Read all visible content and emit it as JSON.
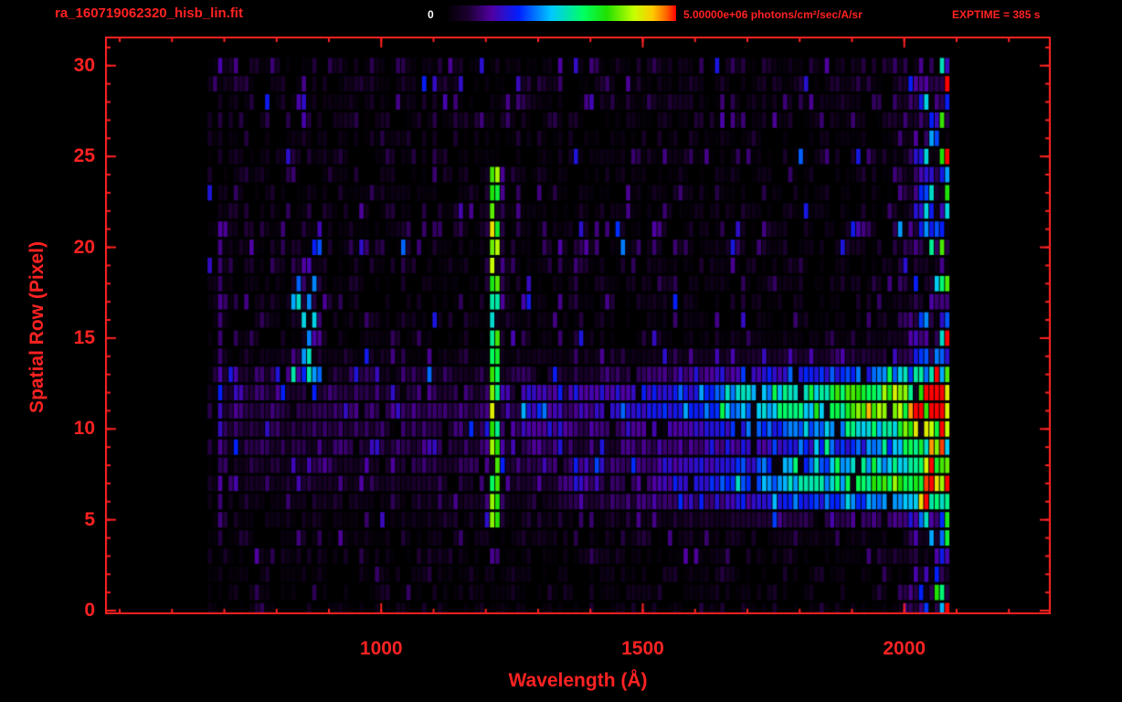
{
  "header": {
    "title": "ra_160719062320_hisb_lin.fit",
    "colorbar_min_label": "0",
    "colorbar_max_label": "5.00000e+06 photons/cm²/sec/A/sr",
    "exptime_label": "EXPTIME = 385 s"
  },
  "colors": {
    "accent_red": "#ff2222",
    "colorbar_min_text": "#ffffff",
    "background": "#000000",
    "frame": "#ff2222"
  },
  "chart_data": {
    "type": "heatmap",
    "title": "ra_160719062320_hisb_lin.fit",
    "xlabel": "Wavelength (Å)",
    "ylabel": "Spatial Row (Pixel)",
    "xlim": [
      472,
      2280
    ],
    "ylim": [
      -0.2,
      31.6
    ],
    "x_major_ticks": [
      1000,
      1500,
      2000
    ],
    "x_minor_step": 100,
    "y_major_ticks": [
      0,
      5,
      10,
      15,
      20,
      25,
      30
    ],
    "y_minor_step": 1,
    "colorbar": {
      "min_value": 0,
      "max_value": 5000000,
      "max_value_label": "5.00000e+06",
      "units": "photons/cm²/sec/A/sr"
    },
    "exposure_time_s": 385,
    "data_extent": {
      "wavelength": [
        668,
        2085
      ],
      "rows": [
        0,
        30
      ]
    },
    "bin_angstrom": 10,
    "background_level": 0.05,
    "colormap": [
      {
        "v": 0.0,
        "c": "#000000"
      },
      {
        "v": 0.1,
        "c": "#1c0030"
      },
      {
        "v": 0.2,
        "c": "#5000a0"
      },
      {
        "v": 0.32,
        "c": "#0020ff"
      },
      {
        "v": 0.46,
        "c": "#00c8ff"
      },
      {
        "v": 0.6,
        "c": "#00ff60"
      },
      {
        "v": 0.7,
        "c": "#20e000"
      },
      {
        "v": 0.82,
        "c": "#c8ff00"
      },
      {
        "v": 0.9,
        "c": "#ffc800"
      },
      {
        "v": 0.96,
        "c": "#ff6000"
      },
      {
        "v": 1.0,
        "c": "#ff0000"
      }
    ],
    "features": [
      {
        "kind": "vline",
        "center": 1216,
        "width": 16,
        "row_min": 4.5,
        "row_max": 24.2,
        "amp": 0.55,
        "desc": "bright emission line"
      },
      {
        "kind": "vline",
        "center": 1216,
        "width": 18,
        "row_min": 19.0,
        "row_max": 24.2,
        "amp": 0.1,
        "desc": "line brighter at top rows"
      },
      {
        "kind": "vline",
        "center": 1216,
        "width": 44,
        "row_min": 18.0,
        "row_max": 24.2,
        "amp": 0.09,
        "desc": "halo around line top"
      },
      {
        "kind": "vline",
        "center": 1216,
        "width": 40,
        "row_min": 4.5,
        "row_max": 9.0,
        "amp": 0.08,
        "desc": "halo around line bottom"
      },
      {
        "kind": "band",
        "row_center": 11.3,
        "row_sigma": 1.35,
        "wl_start": 1270,
        "wl_end": 2085,
        "amp_start": 0.1,
        "amp_end": 0.88,
        "desc": "upper bright continuum band"
      },
      {
        "kind": "band",
        "row_center": 11.0,
        "row_sigma": 1.6,
        "wl_start": 690,
        "wl_end": 1350,
        "amp_start": 0.1,
        "amp_end": 0.12,
        "desc": "upper band faint blue extension"
      },
      {
        "kind": "band",
        "row_center": 7.1,
        "row_sigma": 1.15,
        "wl_start": 1340,
        "wl_end": 2085,
        "amp_start": 0.07,
        "amp_end": 0.75,
        "desc": "lower bright continuum band"
      },
      {
        "kind": "band",
        "row_center": 7.3,
        "row_sigma": 1.3,
        "wl_start": 740,
        "wl_end": 1400,
        "amp_start": 0.05,
        "amp_end": 0.08,
        "desc": "lower band faint blue extension"
      },
      {
        "kind": "blob",
        "wl_min": 828,
        "wl_max": 888,
        "row_min": 13,
        "row_max": 20,
        "amp": 0.26,
        "desc": "blue patch near 850"
      },
      {
        "kind": "vline",
        "center": 693,
        "width": 14,
        "row_min": 4,
        "row_max": 21,
        "amp": 0.12,
        "desc": "faint left-edge streak"
      },
      {
        "kind": "edge",
        "wl_start": 1960,
        "wl_end": 2085,
        "amp": 0.45,
        "desc": "bright noisy right edge all rows"
      }
    ]
  }
}
